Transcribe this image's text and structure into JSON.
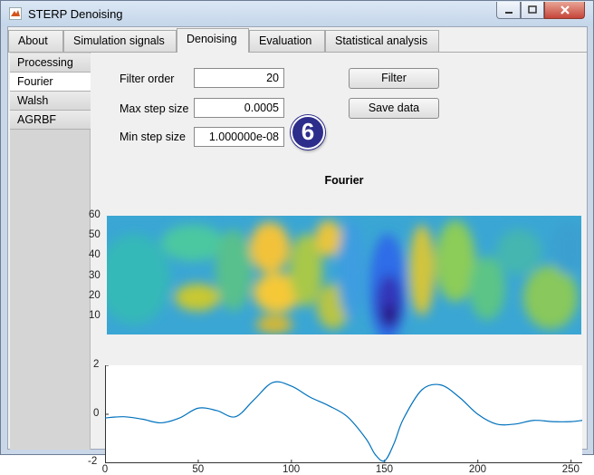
{
  "window": {
    "title": "STERP Denoising"
  },
  "tabs": [
    {
      "label": "About"
    },
    {
      "label": "Simulation signals"
    },
    {
      "label": "Denoising"
    },
    {
      "label": "Evaluation"
    },
    {
      "label": "Statistical analysis"
    }
  ],
  "active_tab": "Denoising",
  "sidebar": {
    "items": [
      {
        "label": "Processing"
      },
      {
        "label": "Fourier"
      },
      {
        "label": "Walsh"
      },
      {
        "label": "AGRBF"
      }
    ],
    "active": "Fourier"
  },
  "params": {
    "filter_order": {
      "label": "Filter order",
      "value": "20"
    },
    "max_step": {
      "label": "Max step size",
      "value": "0.0005"
    },
    "min_step": {
      "label": "Min step size",
      "value": "1.000000e-08"
    }
  },
  "buttons": {
    "filter": "Filter",
    "save": "Save data"
  },
  "badge": {
    "number": "6"
  },
  "chart_data": [
    {
      "type": "heatmap",
      "title": "Fourier",
      "y_ticks": [
        "60",
        "50",
        "40",
        "30",
        "20",
        "10"
      ],
      "ylim": [
        1,
        60
      ],
      "xlim": [
        0,
        256
      ],
      "colormap": "parula"
    },
    {
      "type": "line",
      "title": "",
      "x_ticks": [
        "0",
        "50",
        "100",
        "150",
        "200",
        "250"
      ],
      "y_ticks": [
        "2",
        "0",
        "-2"
      ],
      "xlim": [
        0,
        256
      ],
      "ylim": [
        -2,
        2
      ],
      "color": "#0072bd",
      "x": [
        0,
        10,
        20,
        30,
        40,
        50,
        60,
        70,
        80,
        90,
        100,
        110,
        120,
        130,
        140,
        145,
        150,
        155,
        160,
        170,
        180,
        190,
        200,
        210,
        220,
        230,
        240,
        250,
        256
      ],
      "y": [
        -0.15,
        -0.1,
        -0.2,
        -0.35,
        -0.15,
        0.25,
        0.15,
        -0.1,
        0.6,
        1.3,
        1.15,
        0.7,
        0.35,
        -0.1,
        -1.0,
        -1.65,
        -1.9,
        -1.2,
        -0.2,
        1.0,
        1.2,
        0.7,
        0.0,
        -0.4,
        -0.4,
        -0.25,
        -0.3,
        -0.3,
        -0.25
      ]
    }
  ]
}
